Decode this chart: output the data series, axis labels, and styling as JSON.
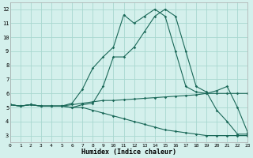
{
  "xlabel": "Humidex (Indice chaleur)",
  "bg_color": "#d4f0ec",
  "grid_color": "#a8d8d0",
  "line_color": "#1a6858",
  "x": [
    0,
    1,
    2,
    3,
    4,
    5,
    6,
    7,
    8,
    9,
    10,
    11,
    12,
    13,
    14,
    15,
    16,
    17,
    18,
    19,
    20,
    21,
    22,
    23
  ],
  "line1": [
    5.2,
    5.1,
    5.2,
    5.1,
    5.1,
    5.1,
    5.2,
    5.3,
    5.4,
    5.5,
    5.5,
    5.55,
    5.6,
    5.65,
    5.7,
    5.75,
    5.8,
    5.85,
    5.9,
    6.0,
    6.0,
    6.0,
    6.0,
    6.0
  ],
  "line2": [
    5.2,
    5.1,
    5.2,
    5.1,
    5.1,
    5.1,
    5.0,
    5.2,
    5.3,
    6.5,
    8.6,
    8.6,
    9.3,
    10.4,
    11.5,
    12.0,
    11.5,
    9.0,
    6.5,
    6.1,
    4.8,
    4.0,
    3.1,
    3.1
  ],
  "line3": [
    5.2,
    5.1,
    5.2,
    5.1,
    5.1,
    5.1,
    5.3,
    6.3,
    7.8,
    8.6,
    9.3,
    11.6,
    11.0,
    11.5,
    12.0,
    11.5,
    9.0,
    6.5,
    6.1,
    6.0,
    6.2,
    6.5,
    5.0,
    3.2
  ],
  "line4": [
    5.2,
    5.1,
    5.2,
    5.1,
    5.1,
    5.1,
    5.0,
    5.0,
    4.8,
    4.6,
    4.4,
    4.2,
    4.0,
    3.8,
    3.6,
    3.4,
    3.3,
    3.2,
    3.1,
    3.0,
    3.0,
    3.0,
    3.0,
    3.0
  ],
  "xlim": [
    0,
    23
  ],
  "ylim": [
    2.5,
    12.5
  ],
  "yticks": [
    3,
    4,
    5,
    6,
    7,
    8,
    9,
    10,
    11,
    12
  ],
  "xticks": [
    0,
    1,
    2,
    3,
    4,
    5,
    6,
    7,
    8,
    9,
    10,
    11,
    12,
    13,
    14,
    15,
    16,
    17,
    18,
    19,
    20,
    21,
    22,
    23
  ]
}
